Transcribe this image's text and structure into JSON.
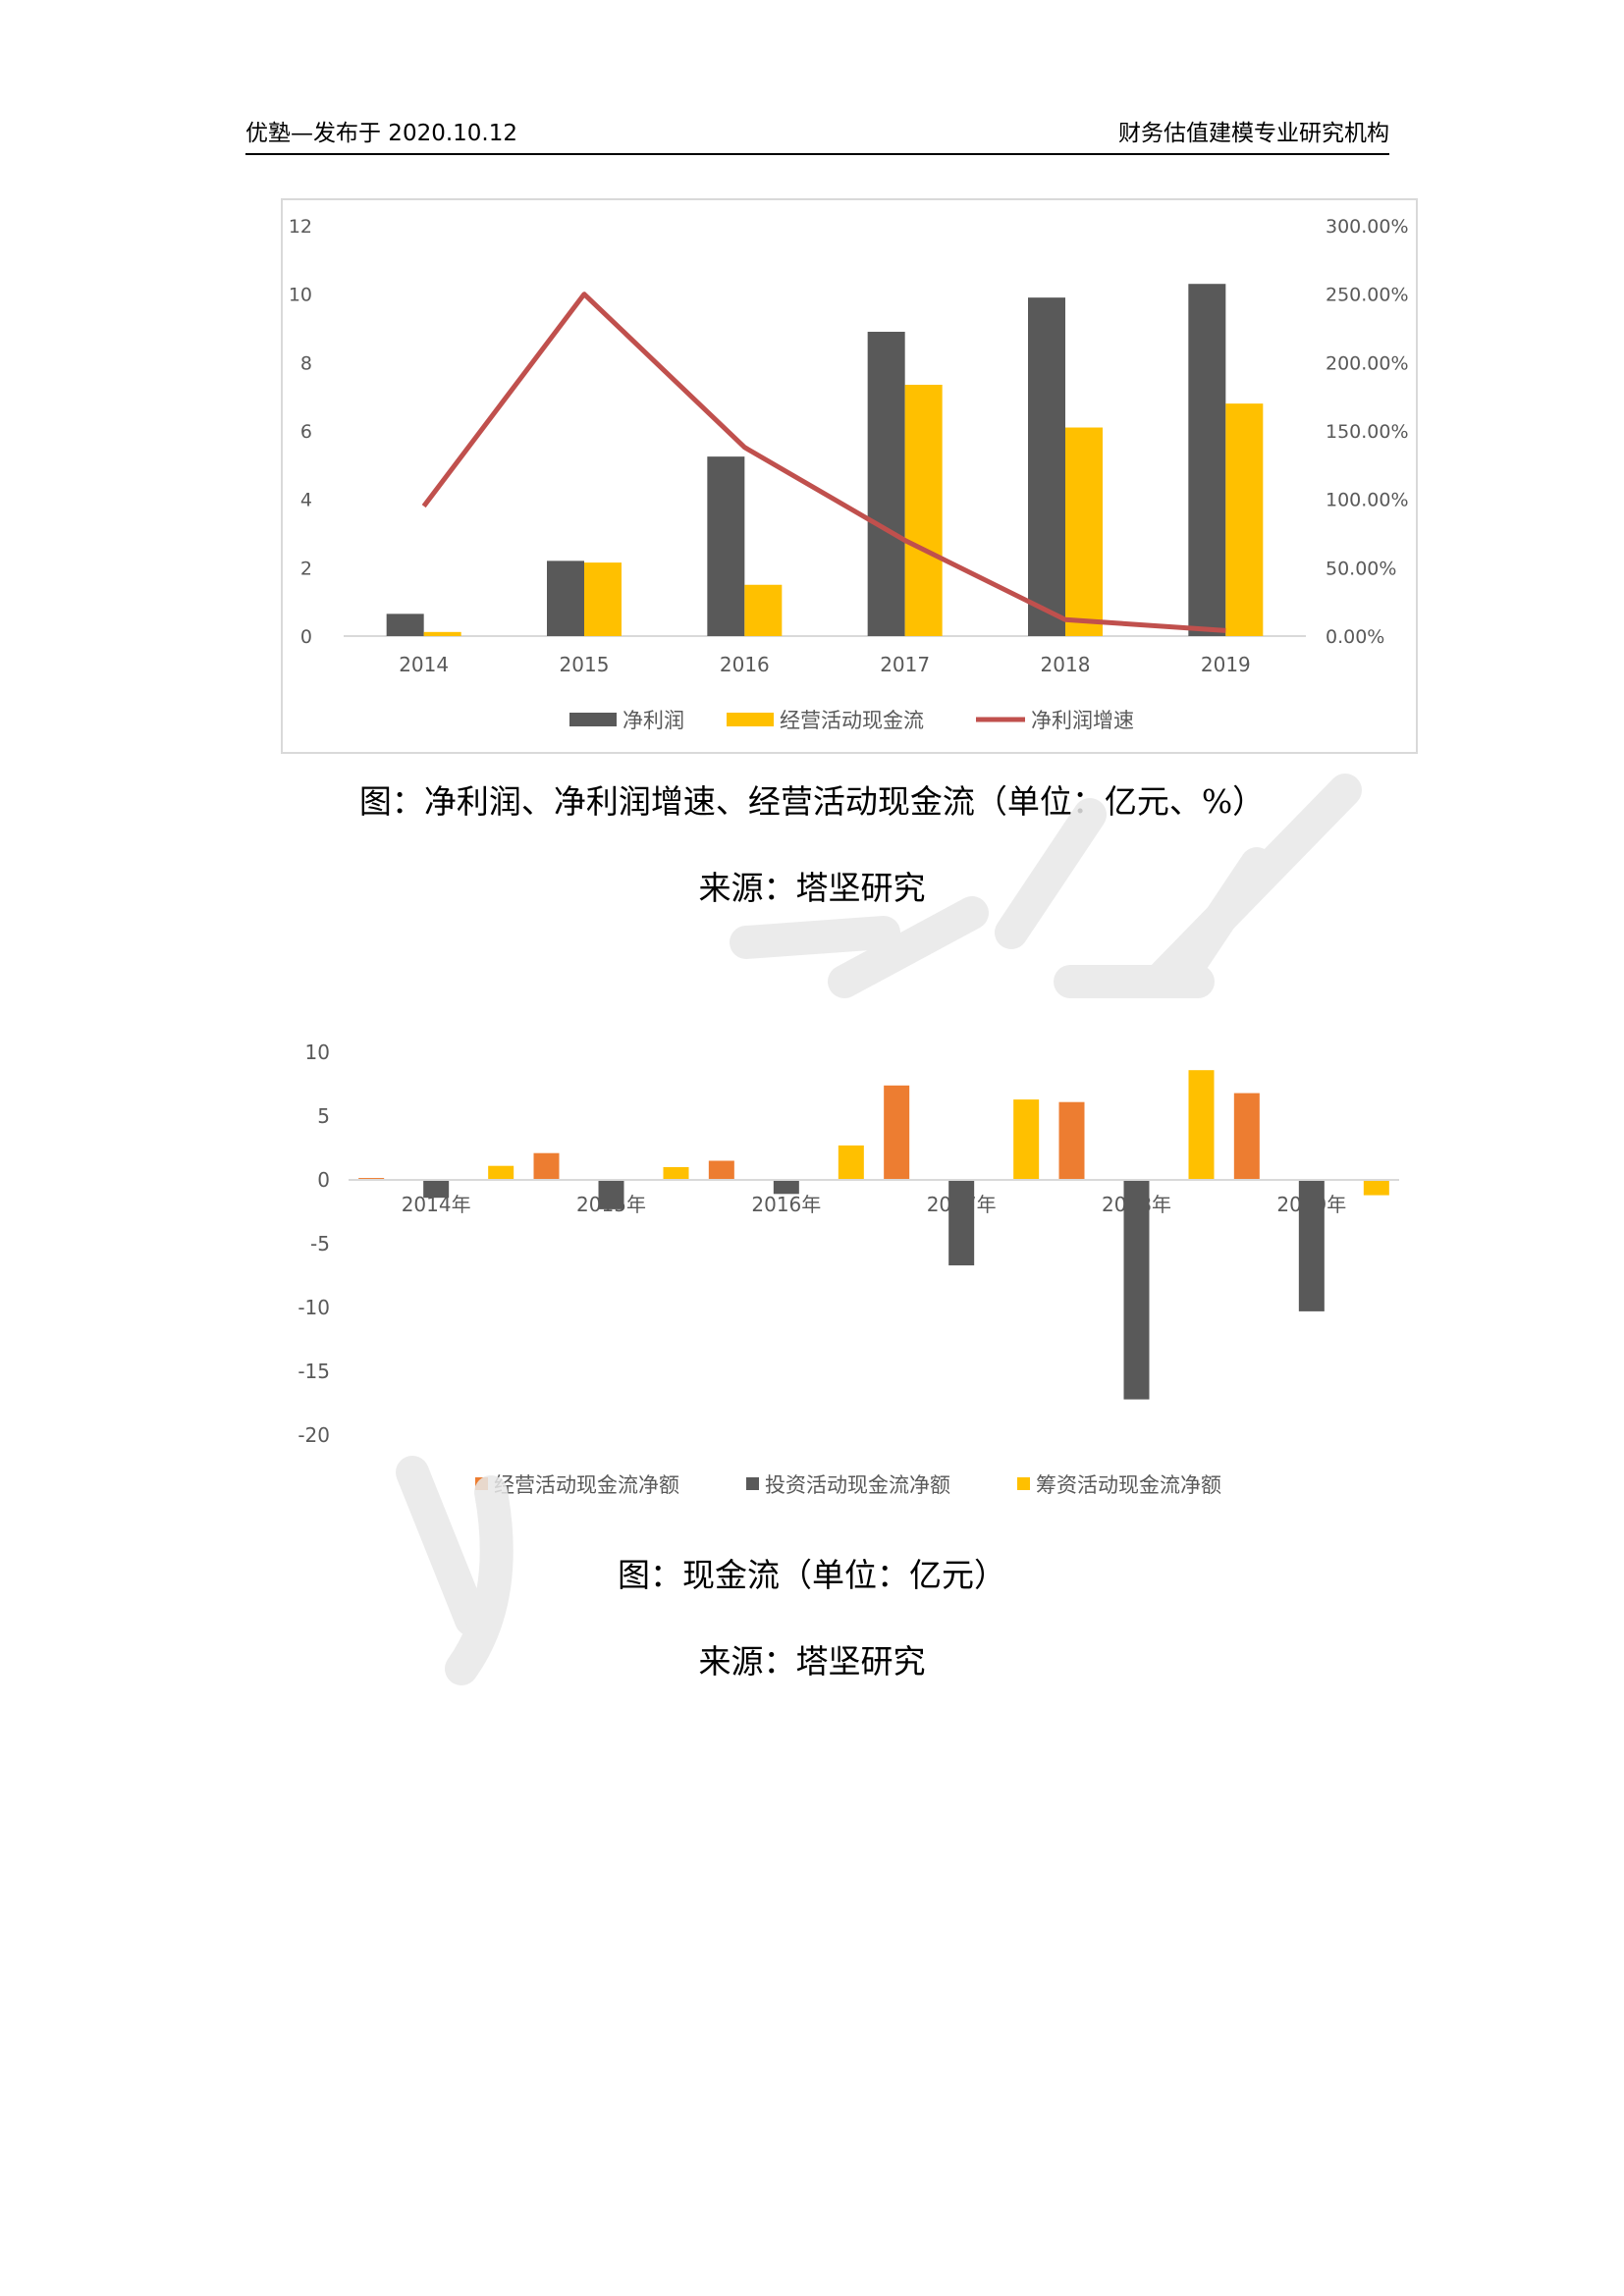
{
  "header": {
    "left": "优塾—发布于 2020.10.12",
    "right": "财务估值建模专业研究机构"
  },
  "captions": {
    "fig1": "图：净利润、净利润增速、经营活动现金流（单位：亿元、%）",
    "source1": "来源：塔坚研究",
    "fig2": "图：现金流（单位：亿元）",
    "source2": "来源：塔坚研究"
  },
  "colors": {
    "dark_bar": "#595959",
    "gold_bar": "#ffc000",
    "orange_bar": "#ed7d31",
    "line_red": "#c0504d",
    "axis_text": "#595959",
    "watermark": "#e6e6e6"
  },
  "chart_data": [
    {
      "type": "bar+line",
      "categories": [
        "2014",
        "2015",
        "2016",
        "2017",
        "2018",
        "2019"
      ],
      "series": [
        {
          "name": "净利润",
          "kind": "bar",
          "axis": "left",
          "values": [
            0.65,
            2.2,
            5.25,
            8.9,
            9.9,
            10.3
          ]
        },
        {
          "name": "经营活动现金流",
          "kind": "bar",
          "axis": "left",
          "values": [
            0.12,
            2.15,
            1.5,
            7.35,
            6.1,
            6.8
          ]
        },
        {
          "name": "净利润增速",
          "kind": "line",
          "axis": "right",
          "values": [
            95,
            250,
            138,
            70,
            12,
            4
          ]
        }
      ],
      "y_left": {
        "min": 0,
        "max": 12,
        "ticks": [
          "0",
          "2",
          "4",
          "6",
          "8",
          "10",
          "12"
        ]
      },
      "y_right": {
        "min": 0,
        "max": 300,
        "ticks": [
          "0.00%",
          "50.00%",
          "100.00%",
          "150.00%",
          "200.00%",
          "250.00%",
          "300.00%"
        ]
      },
      "legend_position": "bottom",
      "grid": false
    },
    {
      "type": "bar",
      "categories": [
        "2014年",
        "2015年",
        "2016年",
        "2017年",
        "2018年",
        "2019年"
      ],
      "series": [
        {
          "name": "经营活动现金流净额",
          "values": [
            0.15,
            2.1,
            1.5,
            7.4,
            6.1,
            6.8
          ]
        },
        {
          "name": "投资活动现金流净额",
          "values": [
            -1.4,
            -2.3,
            -1.1,
            -6.7,
            -17.2,
            -10.3
          ]
        },
        {
          "name": "筹资活动现金流净额",
          "values": [
            1.1,
            1.0,
            2.7,
            6.3,
            8.6,
            -1.2
          ]
        }
      ],
      "y": {
        "min": -20,
        "max": 10,
        "ticks": [
          "10",
          "5",
          "0",
          "-5",
          "-10",
          "-15",
          "-20"
        ]
      },
      "legend_position": "bottom",
      "grid": false
    }
  ]
}
